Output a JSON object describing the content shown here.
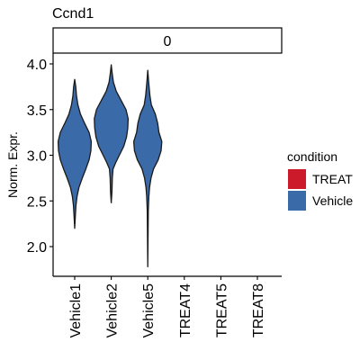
{
  "chart_data": {
    "type": "violin",
    "title": "Ccnd1",
    "facet_label": "0",
    "ylabel": "Norm. Expr.",
    "xlabel": "",
    "ylim": [
      1.7,
      4.05
    ],
    "yticks": [
      2.0,
      2.5,
      3.0,
      3.5,
      4.0
    ],
    "ytick_labels": [
      "2.0",
      "2.5",
      "3.0",
      "3.5",
      "4.0"
    ],
    "categories": [
      "Vehicle1",
      "Vehicle2",
      "Vehicle5",
      "TREAT4",
      "TREAT5",
      "TREAT8"
    ],
    "legend": {
      "title": "condition",
      "position": "right",
      "entries": [
        {
          "label": "TREAT",
          "color": "#cc1a2a"
        },
        {
          "label": "Vehicle",
          "color": "#3a6aa8"
        }
      ]
    },
    "violins": [
      {
        "category": "Vehicle1",
        "condition": "Vehicle",
        "min": 2.2,
        "max": 3.83,
        "profile": [
          [
            3.83,
            0.0
          ],
          [
            3.75,
            0.06
          ],
          [
            3.65,
            0.1
          ],
          [
            3.55,
            0.18
          ],
          [
            3.45,
            0.32
          ],
          [
            3.35,
            0.55
          ],
          [
            3.25,
            0.8
          ],
          [
            3.15,
            0.92
          ],
          [
            3.05,
            0.9
          ],
          [
            2.95,
            0.8
          ],
          [
            2.85,
            0.62
          ],
          [
            2.75,
            0.42
          ],
          [
            2.65,
            0.24
          ],
          [
            2.55,
            0.13
          ],
          [
            2.45,
            0.07
          ],
          [
            2.35,
            0.04
          ],
          [
            2.2,
            0.0
          ]
        ]
      },
      {
        "category": "Vehicle2",
        "condition": "Vehicle",
        "min": 2.48,
        "max": 3.99,
        "profile": [
          [
            3.99,
            0.0
          ],
          [
            3.9,
            0.05
          ],
          [
            3.8,
            0.12
          ],
          [
            3.7,
            0.28
          ],
          [
            3.6,
            0.55
          ],
          [
            3.5,
            0.82
          ],
          [
            3.4,
            0.94
          ],
          [
            3.3,
            0.92
          ],
          [
            3.2,
            0.85
          ],
          [
            3.1,
            0.7
          ],
          [
            3.0,
            0.45
          ],
          [
            2.92,
            0.25
          ],
          [
            2.85,
            0.1
          ],
          [
            2.75,
            0.06
          ],
          [
            2.6,
            0.04
          ],
          [
            2.48,
            0.0
          ]
        ]
      },
      {
        "category": "Vehicle5",
        "condition": "Vehicle",
        "min": 1.78,
        "max": 3.93,
        "profile": [
          [
            3.93,
            0.0
          ],
          [
            3.8,
            0.05
          ],
          [
            3.65,
            0.12
          ],
          [
            3.55,
            0.2
          ],
          [
            3.45,
            0.42
          ],
          [
            3.35,
            0.55
          ],
          [
            3.25,
            0.62
          ],
          [
            3.15,
            0.78
          ],
          [
            3.05,
            0.74
          ],
          [
            2.95,
            0.58
          ],
          [
            2.85,
            0.32
          ],
          [
            2.75,
            0.18
          ],
          [
            2.65,
            0.1
          ],
          [
            2.55,
            0.06
          ],
          [
            2.4,
            0.03
          ],
          [
            2.2,
            0.02
          ],
          [
            1.78,
            0.0
          ]
        ]
      }
    ],
    "colors": {
      "vehicle_fill": "#3a6aa8",
      "treat_fill": "#cc1a2a",
      "outline": "#1a1a1a",
      "axis": "#000000"
    }
  }
}
